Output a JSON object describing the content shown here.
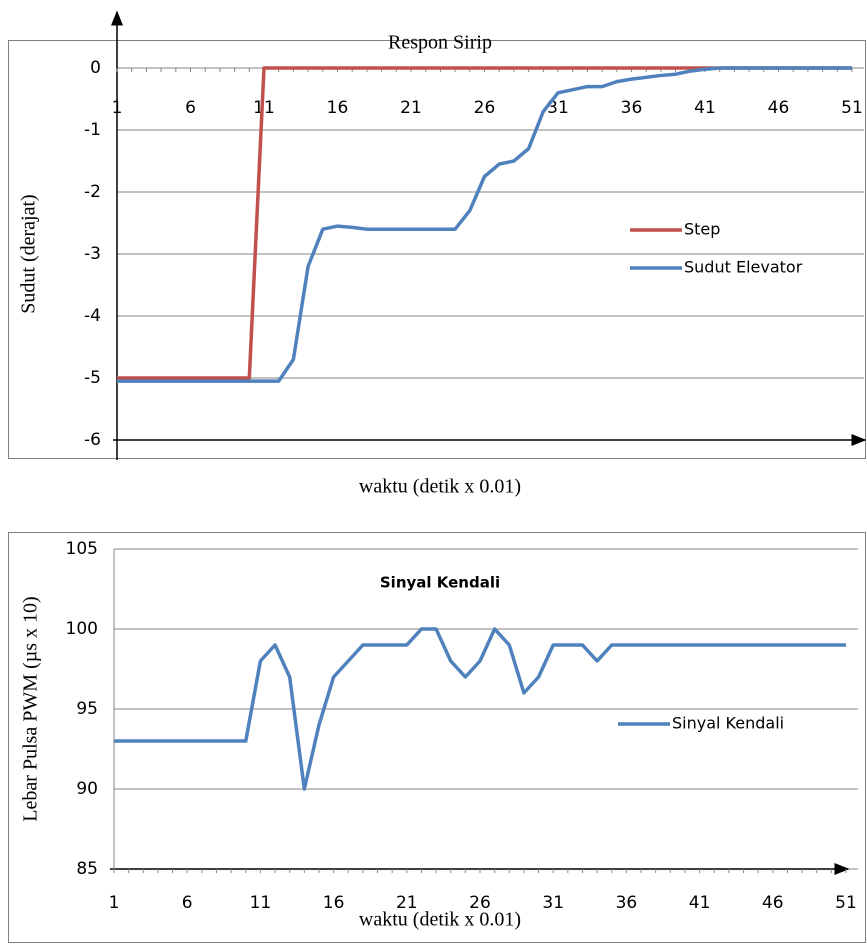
{
  "chart_data": [
    {
      "type": "line",
      "title": "Respon Sirip",
      "x_label": "waktu (detik x 0.01)",
      "y_label": "Sudut (derajat)",
      "categories": [
        "1",
        null,
        null,
        null,
        null,
        "6",
        null,
        null,
        null,
        null,
        "11",
        null,
        null,
        null,
        null,
        "16",
        null,
        null,
        null,
        null,
        "21",
        null,
        null,
        null,
        null,
        "26",
        null,
        null,
        null,
        null,
        "31",
        null,
        null,
        null,
        null,
        "36",
        null,
        null,
        null,
        null,
        "41",
        null,
        null,
        null,
        null,
        "46",
        null,
        null,
        null,
        null,
        "51"
      ],
      "ylim": [
        -6,
        0
      ],
      "yticks": [
        0,
        -1,
        -2,
        -3,
        -4,
        -5,
        -6
      ],
      "grid": true,
      "series": [
        {
          "name": "Step",
          "color": "#c0504d",
          "values": [
            -5,
            -5,
            -5,
            -5,
            -5,
            -5,
            -5,
            -5,
            -5,
            -5,
            0,
            0,
            0,
            0,
            0,
            0,
            0,
            0,
            0,
            0,
            0,
            0,
            0,
            0,
            0,
            0,
            0,
            0,
            0,
            0,
            0,
            0,
            0,
            0,
            0,
            0,
            0,
            0,
            0,
            0,
            0,
            0,
            0,
            0,
            0,
            0,
            0,
            0,
            0,
            0,
            0
          ]
        },
        {
          "name": "Sudut Elevator",
          "color": "#4f81bd",
          "values": [
            -5.05,
            -5.05,
            -5.05,
            -5.05,
            -5.05,
            -5.05,
            -5.05,
            -5.05,
            -5.05,
            -5.05,
            -5.05,
            -5.05,
            -4.7,
            -3.2,
            -2.6,
            -2.55,
            -2.57,
            -2.6,
            -2.6,
            -2.6,
            -2.6,
            -2.6,
            -2.6,
            -2.6,
            -2.3,
            -1.75,
            -1.55,
            -1.5,
            -1.3,
            -0.7,
            -0.4,
            -0.35,
            -0.3,
            -0.3,
            -0.22,
            -0.18,
            -0.15,
            -0.12,
            -0.1,
            -0.05,
            -0.02,
            0,
            0,
            0,
            0,
            0,
            0,
            0,
            0,
            0,
            0
          ]
        }
      ]
    },
    {
      "type": "line",
      "title": "Sinyal Kendali",
      "x_label": "waktu (detik x 0.01)",
      "y_label": "Lebar Pulsa PWM (µs x 10)",
      "categories": [
        "1",
        null,
        null,
        null,
        null,
        "6",
        null,
        null,
        null,
        null,
        "11",
        null,
        null,
        null,
        null,
        "16",
        null,
        null,
        null,
        null,
        "21",
        null,
        null,
        null,
        null,
        "26",
        null,
        null,
        null,
        null,
        "31",
        null,
        null,
        null,
        null,
        "36",
        null,
        null,
        null,
        null,
        "41",
        null,
        null,
        null,
        null,
        "46",
        null,
        null,
        null,
        null,
        "51"
      ],
      "ylim": [
        85,
        105
      ],
      "yticks": [
        85,
        90,
        95,
        100,
        105
      ],
      "grid": true,
      "series": [
        {
          "name": "Sinyal Kendali",
          "color": "#4f81bd",
          "values": [
            93,
            93,
            93,
            93,
            93,
            93,
            93,
            93,
            93,
            93,
            98,
            99,
            97,
            90,
            94,
            97,
            98,
            99,
            99,
            99,
            99,
            100,
            100,
            98,
            97,
            98,
            100,
            99,
            96,
            97,
            99,
            99,
            99,
            98,
            99,
            99,
            99,
            99,
            99,
            99,
            99,
            99,
            99,
            99,
            99,
            99,
            99,
            99,
            99,
            99,
            99
          ]
        }
      ]
    }
  ]
}
